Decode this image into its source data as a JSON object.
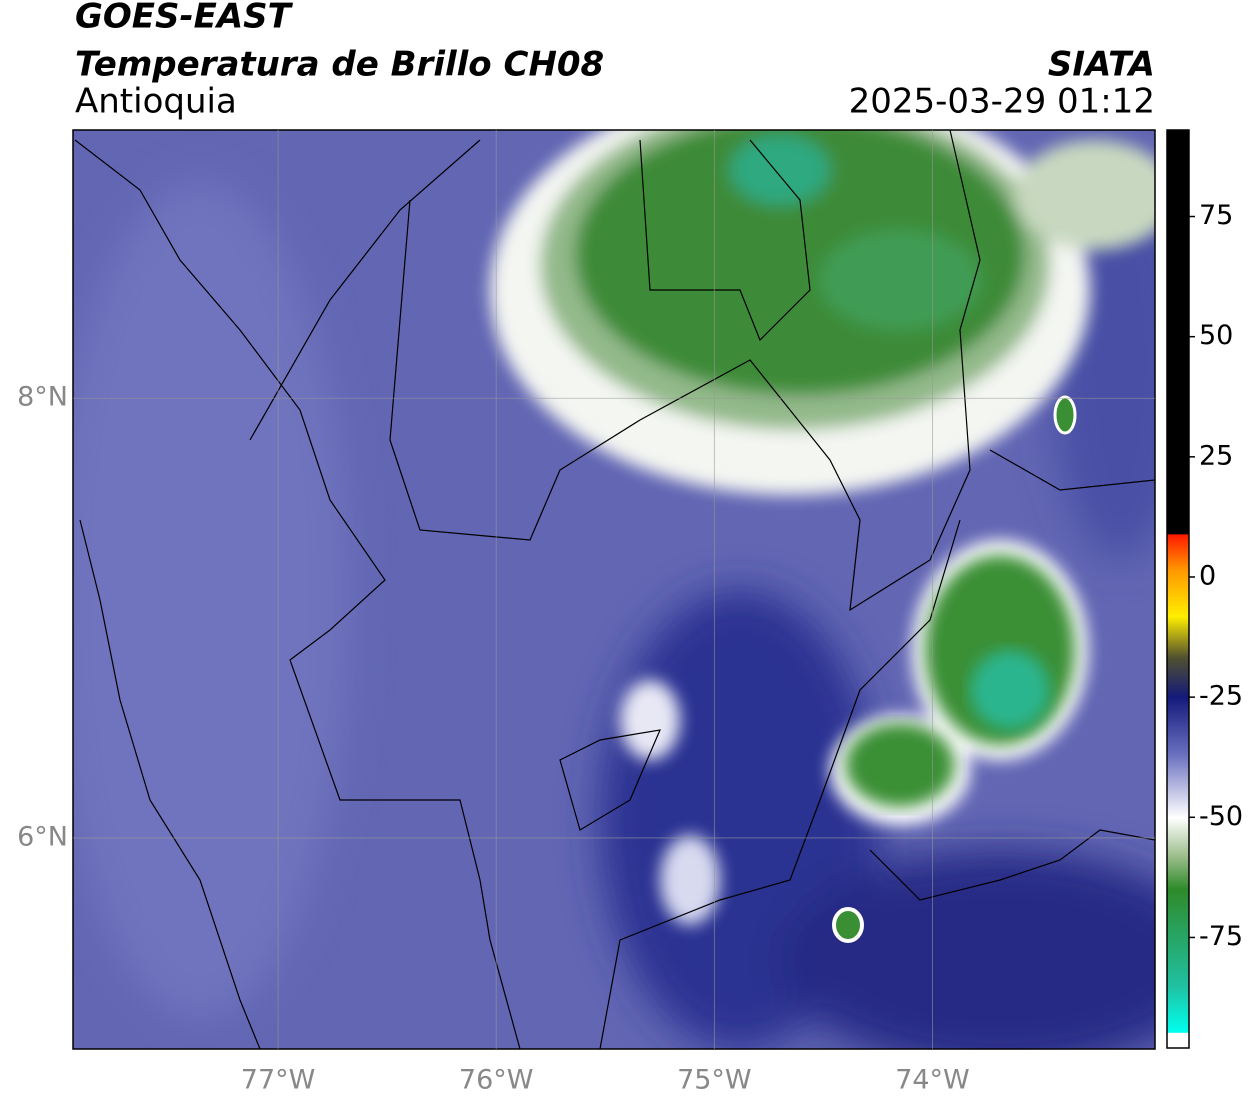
{
  "header": {
    "title": "GOES-EAST",
    "subtitle": "Temperatura de Brillo CH08",
    "region": "Antioquia",
    "source": "SIATA",
    "timestamp": "2025-03-29 01:12"
  },
  "map": {
    "xlim": [
      -77.94,
      -72.98
    ],
    "ylim": [
      5.04,
      9.22
    ],
    "xticks": [
      {
        "value": -77,
        "label": "77°W"
      },
      {
        "value": -76,
        "label": "76°W"
      },
      {
        "value": -75,
        "label": "75°W"
      },
      {
        "value": -74,
        "label": "74°W"
      }
    ],
    "yticks": [
      {
        "value": 6,
        "label": "6°N"
      },
      {
        "value": 8,
        "label": "8°N"
      }
    ],
    "grid": true
  },
  "colorbar": {
    "lim": [
      -98,
      93
    ],
    "ticks": [
      75,
      50,
      25,
      0,
      -25,
      -50,
      -75
    ]
  }
}
